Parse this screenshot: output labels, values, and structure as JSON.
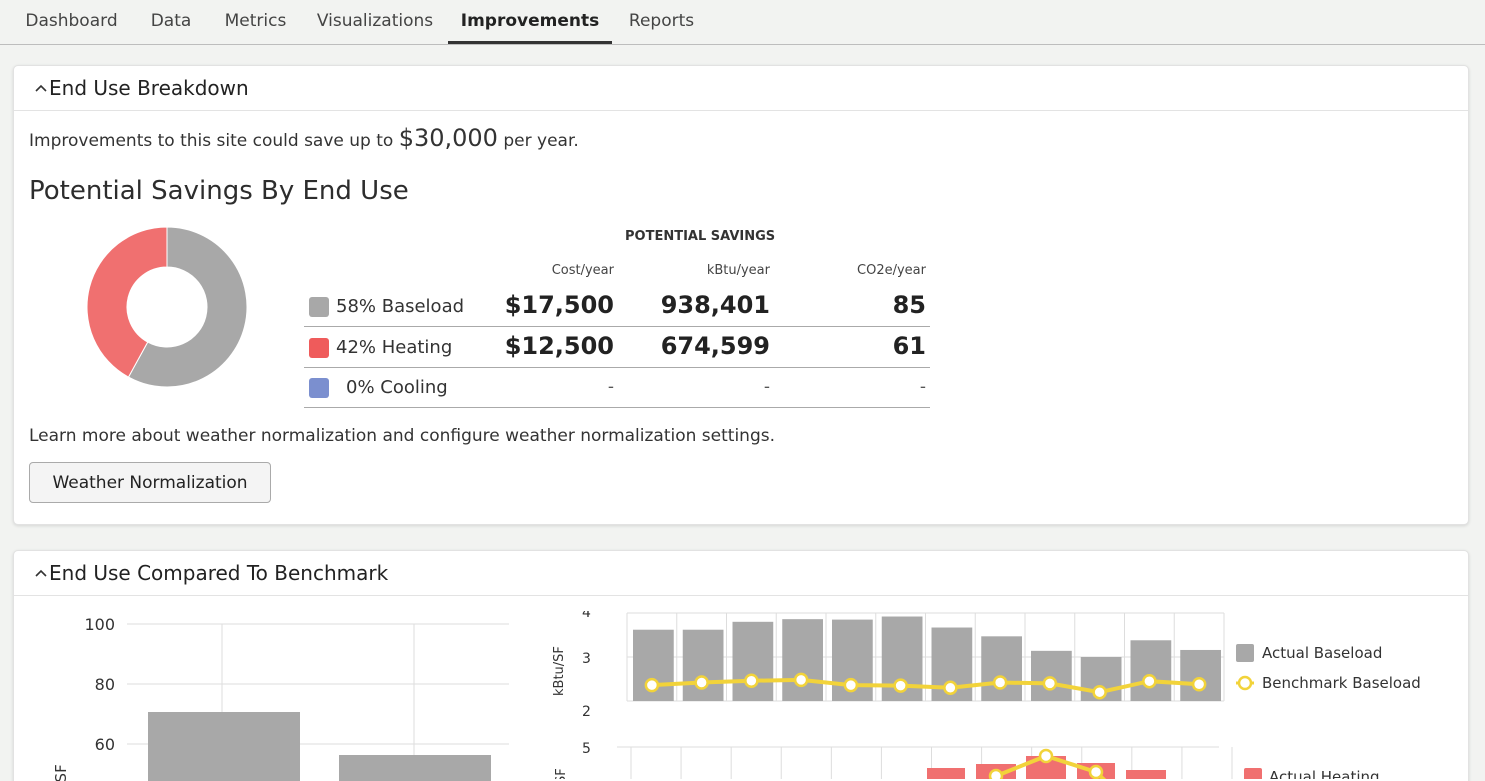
{
  "tabs": [
    {
      "label": "Dashboard"
    },
    {
      "label": "Data"
    },
    {
      "label": "Metrics"
    },
    {
      "label": "Visualizations"
    },
    {
      "label": "Improvements",
      "active": true
    },
    {
      "label": "Reports"
    }
  ],
  "panel1": {
    "title": "End Use Breakdown",
    "savings_prefix": "Improvements to this site could save up to",
    "savings_amount": "$30,000",
    "savings_suffix": "per year.",
    "section_title": "Potential Savings By End Use",
    "table": {
      "group_header": "POTENTIAL SAVINGS",
      "columns": [
        "Cost/year",
        "kBtu/year",
        "CO2e/year"
      ],
      "rows": [
        {
          "label": "58% Baseload",
          "color": "#a8a8a8",
          "cost": "$17,500",
          "kbtu": "938,401",
          "co2e": "85"
        },
        {
          "label": "42% Heating",
          "color": "#ef5b5b",
          "cost": "$12,500",
          "kbtu": "674,599",
          "co2e": "61"
        },
        {
          "label": "0% Cooling",
          "color": "#7b8fcf",
          "cost": "-",
          "kbtu": "-",
          "co2e": "-"
        }
      ]
    },
    "donut": {
      "baseload_pct": 58,
      "heating_pct": 42,
      "cooling_pct": 0,
      "colors": {
        "baseload": "#a8a8a8",
        "heating": "#f07070"
      }
    },
    "learn_text": "Learn more about weather normalization and configure weather normalization settings.",
    "button_label": "Weather Normalization"
  },
  "panel2": {
    "title": "End Use Compared To Benchmark",
    "left_chart": {
      "y_ticks": [
        "100",
        "80",
        "60"
      ],
      "y_label": "u/SF",
      "bars": [
        70.5,
        56
      ]
    },
    "baseload_chart": {
      "y_label": "kBtu/SF",
      "y_ticks": [
        "4",
        "3",
        "2"
      ],
      "actual": [
        3.62,
        3.62,
        3.8,
        3.86,
        3.85,
        3.92,
        3.67,
        3.47,
        3.14,
        3.0,
        3.38,
        3.16
      ],
      "benchmark": [
        2.36,
        2.42,
        2.46,
        2.48,
        2.36,
        2.35,
        2.3,
        2.42,
        2.4,
        2.2,
        2.45,
        2.38
      ],
      "legend": [
        "Actual Baseload",
        "Benchmark Baseload"
      ]
    },
    "heating_chart": {
      "y_label": "SF",
      "y_ticks": [
        "5"
      ],
      "legend": [
        "Actual Heating"
      ]
    }
  }
}
